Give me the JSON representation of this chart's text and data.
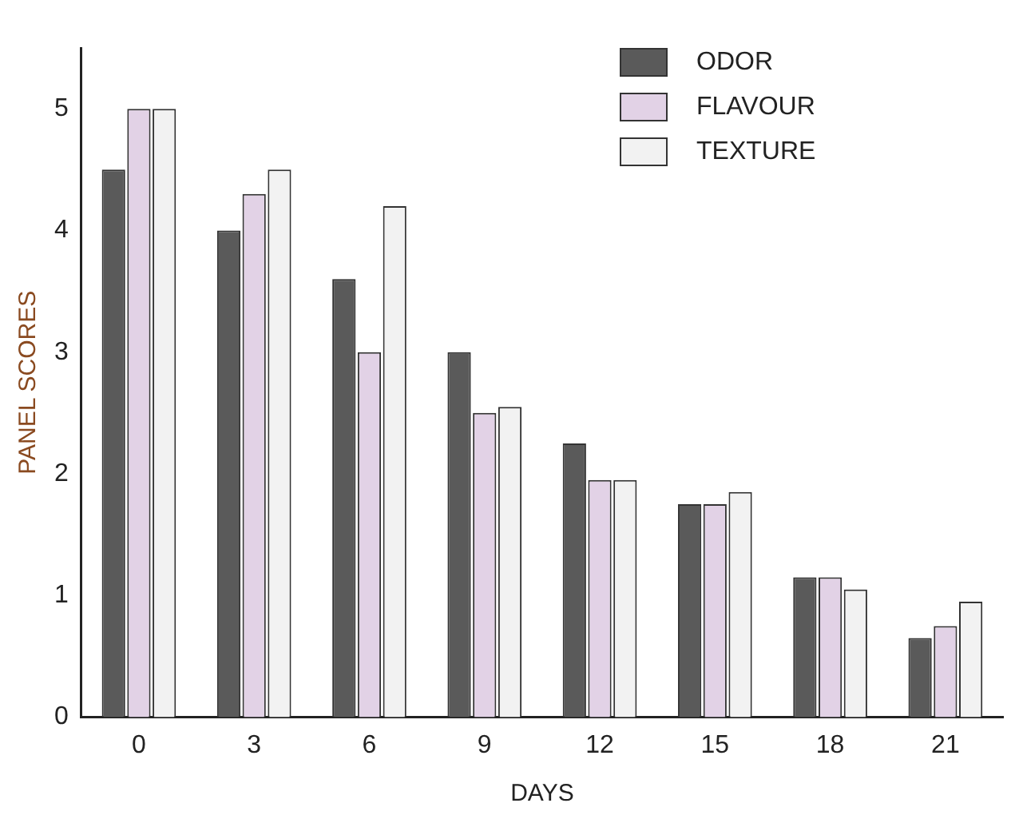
{
  "chart_data": {
    "type": "bar",
    "xlabel": "DAYS",
    "ylabel": "PANEL SCORES",
    "categories": [
      "0",
      "3",
      "6",
      "9",
      "12",
      "15",
      "18",
      "21"
    ],
    "series": [
      {
        "name": "ODOR",
        "color": "#5a5a5a",
        "values": [
          4.5,
          4.0,
          3.6,
          3.0,
          2.25,
          1.75,
          1.15,
          0.65
        ]
      },
      {
        "name": "FLAVOUR",
        "color": "#e2d2e6",
        "values": [
          5.0,
          4.3,
          3.0,
          2.5,
          1.95,
          1.75,
          1.15,
          0.75
        ]
      },
      {
        "name": "TEXTURE",
        "color": "#f2f2f2",
        "values": [
          5.0,
          4.5,
          4.2,
          2.55,
          1.95,
          1.85,
          1.05,
          0.95
        ]
      }
    ],
    "ylim": [
      0,
      5.5
    ],
    "yticks": [
      0,
      1,
      2,
      3,
      4,
      5
    ],
    "grid": false,
    "legend": "top right"
  }
}
